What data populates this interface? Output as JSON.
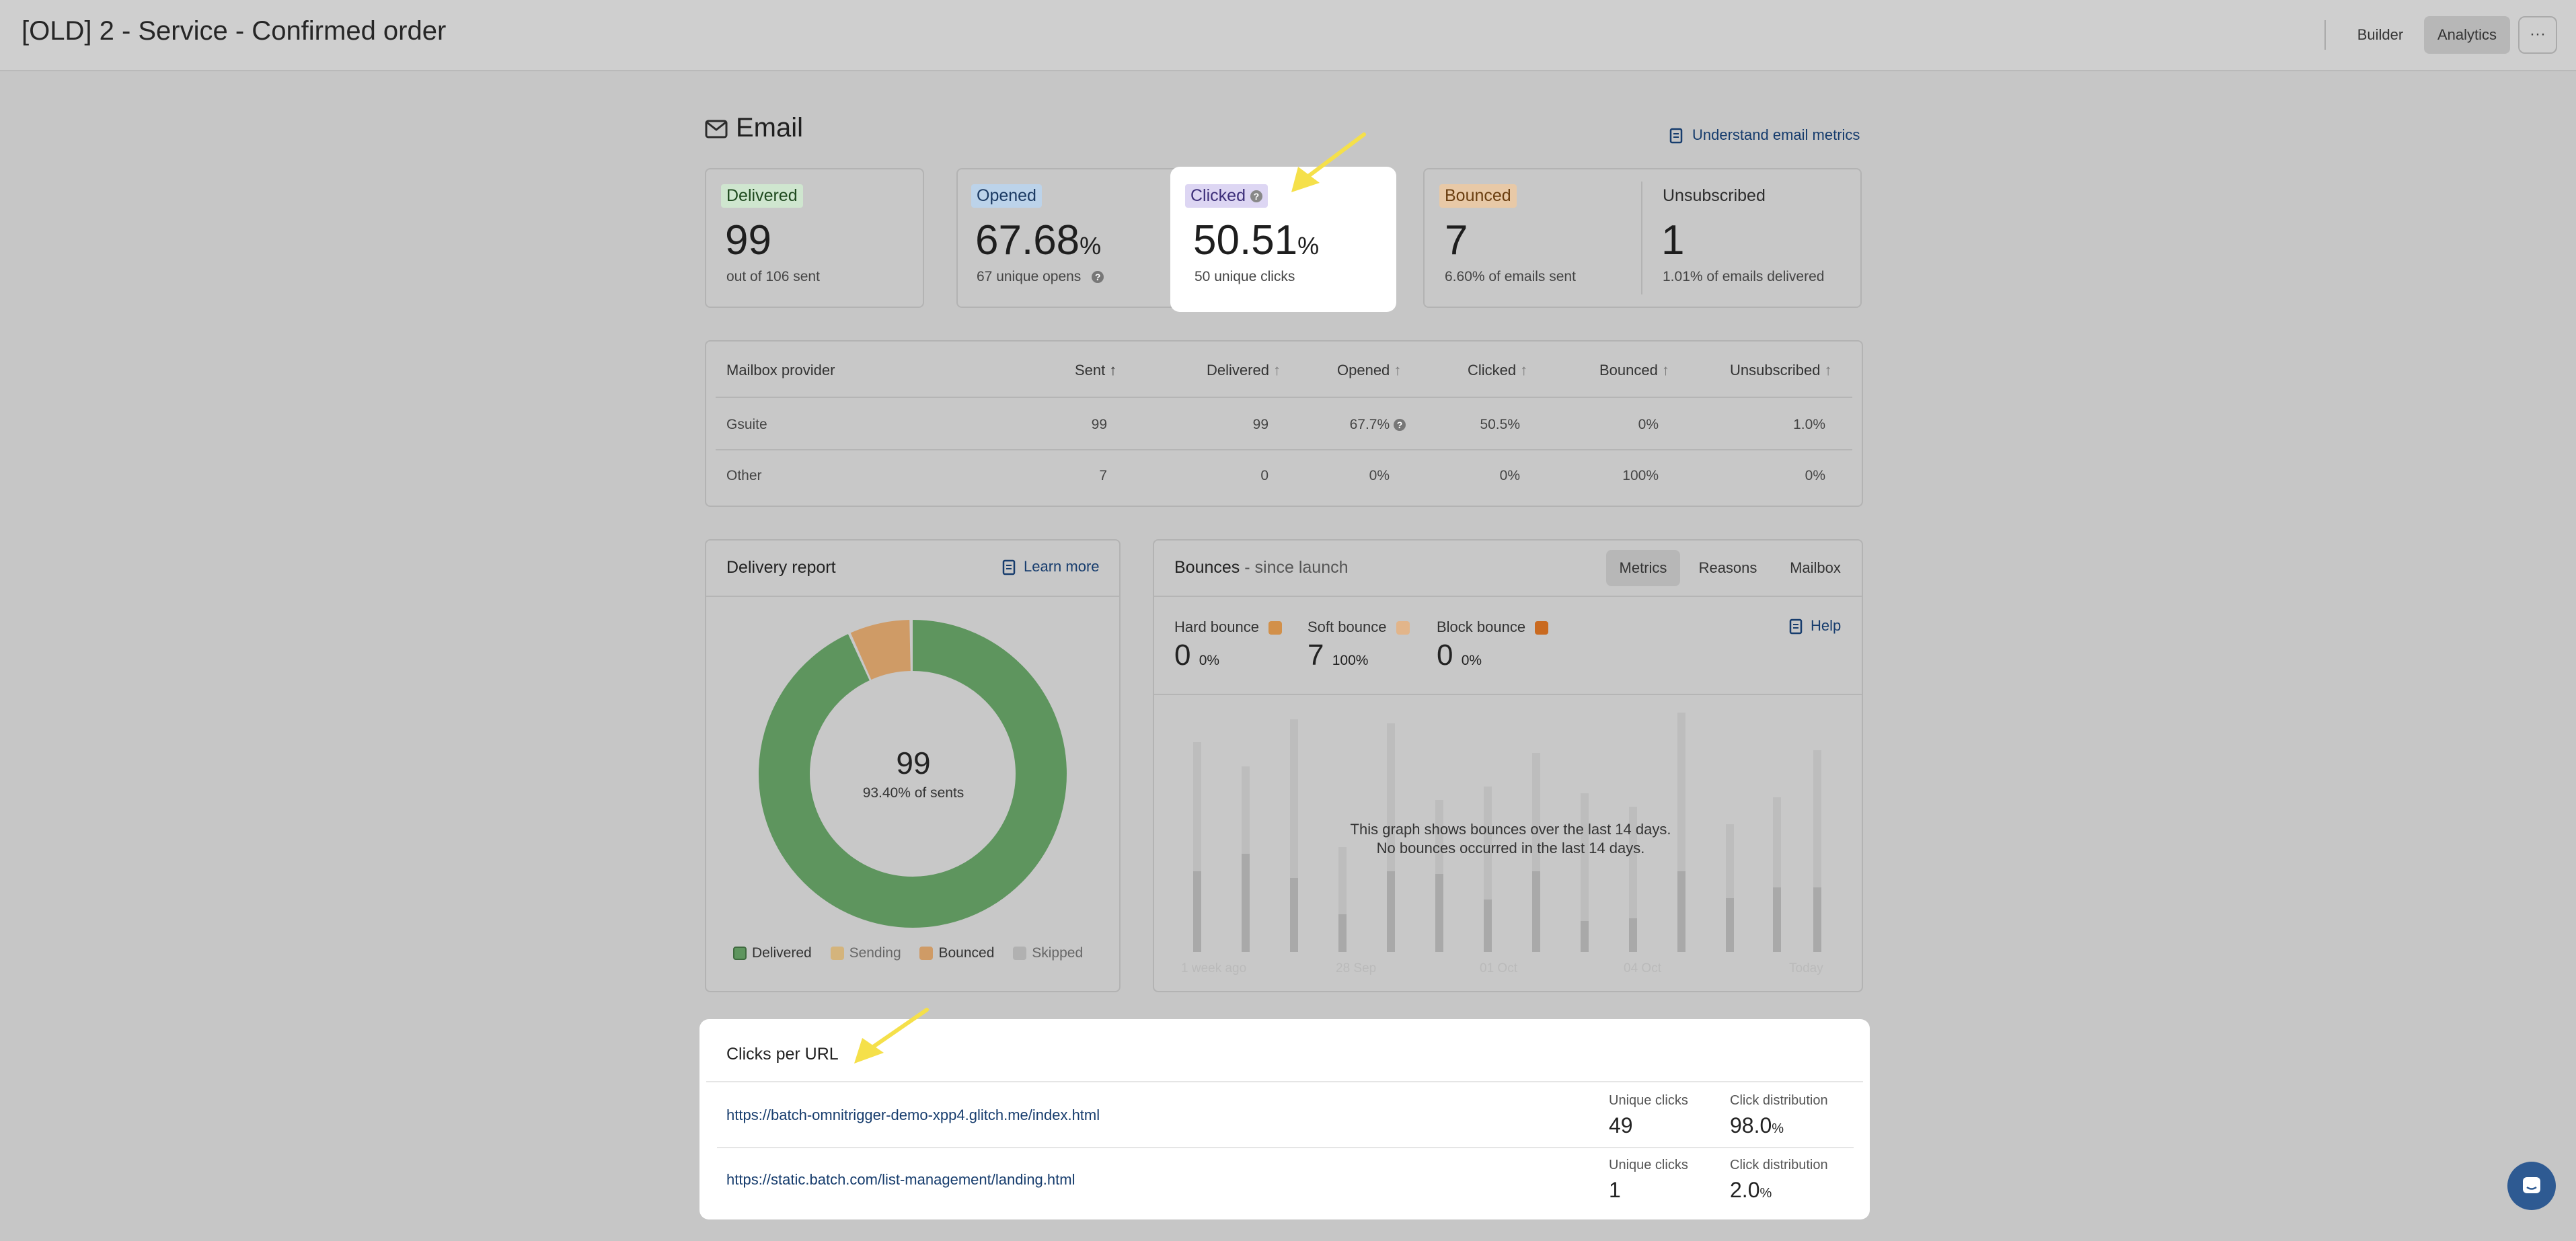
{
  "header": {
    "title": "[OLD] 2 - Service - Confirmed order",
    "tabs": [
      "Builder",
      "Analytics"
    ],
    "active_tab": "Analytics",
    "more_label": "···"
  },
  "email": {
    "title": "Email",
    "metrics_link": "Understand email metrics",
    "delivered": {
      "label": "Delivered",
      "value": "99",
      "sub": "out of 106 sent",
      "color": "#cfe6cf"
    },
    "opened": {
      "label": "Opened",
      "value": "67.68",
      "unit": "%",
      "sub": "67 unique opens",
      "color": "#bcd3ea"
    },
    "clicked": {
      "label": "Clicked",
      "value": "50.51",
      "unit": "%",
      "sub": "50 unique clicks",
      "color": "#ddd6f3"
    },
    "bounced": {
      "label": "Bounced",
      "value": "7",
      "sub": "6.60% of emails sent",
      "color": "#e8c9a7"
    },
    "unsubscribed": {
      "label": "Unsubscribed",
      "value": "1",
      "sub": "1.01% of emails delivered"
    }
  },
  "mailbox_table": {
    "headers": [
      "Mailbox provider",
      "Sent",
      "Delivered",
      "Opened",
      "Clicked",
      "Bounced",
      "Unsubscribed"
    ],
    "rows": [
      {
        "provider": "Gsuite",
        "sent": "99",
        "delivered": "99",
        "opened": "67.7%",
        "clicked": "50.5%",
        "bounced": "0%",
        "unsubscribed": "1.0%"
      },
      {
        "provider": "Other",
        "sent": "7",
        "delivered": "0",
        "opened": "0%",
        "clicked": "0%",
        "bounced": "100%",
        "unsubscribed": "0%"
      }
    ]
  },
  "delivery_report": {
    "title": "Delivery report",
    "learn_more": "Learn more",
    "center_value": "99",
    "center_sub": "93.40% of sents",
    "delivered_fraction": 0.934,
    "bounced_fraction": 0.066,
    "legend": [
      {
        "label": "Delivered",
        "color": "#5e955e"
      },
      {
        "label": "Sending",
        "color": "#d4b47c"
      },
      {
        "label": "Bounced",
        "color": "#cf9b66"
      },
      {
        "label": "Skipped",
        "color": "#b1b1b1"
      }
    ]
  },
  "bounces": {
    "title": "Bounces",
    "subtitle": "- since launch",
    "tabs": [
      "Metrics",
      "Reasons",
      "Mailbox"
    ],
    "active_tab": "Metrics",
    "help": "Help",
    "types": [
      {
        "label": "Hard bounce",
        "value": "0",
        "pct": "0%",
        "color": "#d2904a"
      },
      {
        "label": "Soft bounce",
        "value": "7",
        "pct": "100%",
        "color": "#e2b58a"
      },
      {
        "label": "Block bounce",
        "value": "0",
        "pct": "0%",
        "color": "#c96a20"
      }
    ],
    "empty_line1": "This graph shows bounces over the last 14 days.",
    "empty_line2": "No bounces occurred in the last 14 days.",
    "x_labels": [
      "1 week ago",
      "28 Sep",
      "01 Oct",
      "04 Oct",
      "Today"
    ]
  },
  "clicks_per_url": {
    "title": "Clicks per URL",
    "unique_label": "Unique clicks",
    "dist_label": "Click distribution",
    "rows": [
      {
        "url": "https://batch-omnitrigger-demo-xpp4.glitch.me/index.html",
        "unique": "49",
        "dist": "98.0",
        "unit": "%"
      },
      {
        "url": "https://static.batch.com/list-management/landing.html",
        "unique": "1",
        "dist": "2.0",
        "unit": "%"
      }
    ]
  },
  "annotation_color": "#f5e04a"
}
